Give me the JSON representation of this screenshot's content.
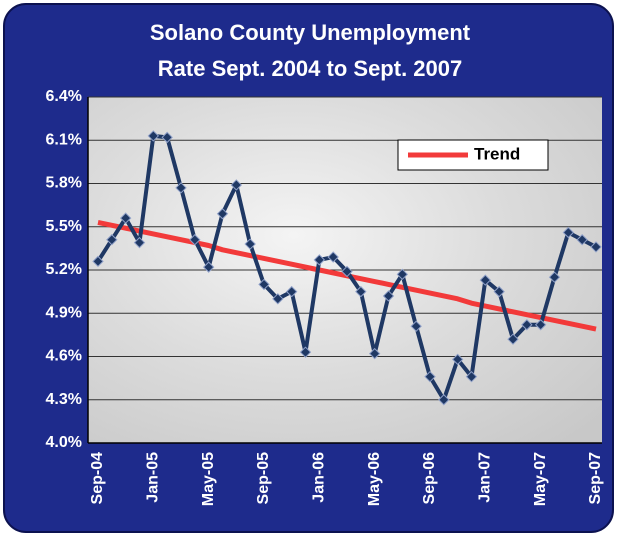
{
  "chart_data": {
    "type": "line",
    "title": [
      "Solano County Unemployment",
      "Rate Sept. 2004 to Sept. 2007"
    ],
    "categories": [
      "Sep-04",
      null,
      null,
      null,
      "Jan-05",
      null,
      null,
      null,
      "May-05",
      null,
      null,
      null,
      "Sep-05",
      null,
      null,
      null,
      "Jan-06",
      null,
      null,
      null,
      "May-06",
      null,
      null,
      null,
      "Sep-06",
      null,
      null,
      null,
      "Jan-07",
      null,
      null,
      null,
      "May-07",
      null,
      null,
      null,
      "Sep-07"
    ],
    "series": [
      {
        "color": "#1f3864",
        "values": [
          5.26,
          5.41,
          5.56,
          5.39,
          6.13,
          6.12,
          5.77,
          5.41,
          5.22,
          5.59,
          5.79,
          5.38,
          5.1,
          5.0,
          5.05,
          4.63,
          5.27,
          5.29,
          5.19,
          5.05,
          4.62,
          5.02,
          5.17,
          4.81,
          4.46,
          4.3,
          4.58,
          4.46,
          5.13,
          5.05,
          4.72,
          4.82,
          4.82,
          5.15,
          5.46,
          5.41,
          5.36
        ]
      },
      {
        "name": "Trend",
        "color": "#f23a3a",
        "values": [
          5.53,
          5.51,
          5.49,
          5.47,
          5.45,
          5.43,
          5.41,
          5.39,
          5.37,
          5.34,
          5.32,
          5.3,
          5.28,
          5.26,
          5.24,
          5.22,
          5.2,
          5.18,
          5.16,
          5.14,
          5.12,
          5.1,
          5.08,
          5.06,
          5.04,
          5.02,
          5.0,
          4.97,
          4.95,
          4.93,
          4.91,
          4.89,
          4.87,
          4.85,
          4.83,
          4.81,
          4.79
        ]
      }
    ],
    "ylim": [
      4.0,
      6.4
    ],
    "yticks": [
      {
        "value": 4.0,
        "label": "4.0%"
      },
      {
        "value": 4.3,
        "label": "4.3%"
      },
      {
        "value": 4.6,
        "label": "4.6%"
      },
      {
        "value": 4.9,
        "label": "4.9%"
      },
      {
        "value": 5.2,
        "label": "5.2%"
      },
      {
        "value": 5.5,
        "label": "5.5%"
      },
      {
        "value": 5.8,
        "label": "5.8%"
      },
      {
        "value": 6.1,
        "label": "6.1%"
      },
      {
        "value": 6.4,
        "label": "6.4%"
      }
    ],
    "grid": true,
    "legend": "upper right"
  }
}
